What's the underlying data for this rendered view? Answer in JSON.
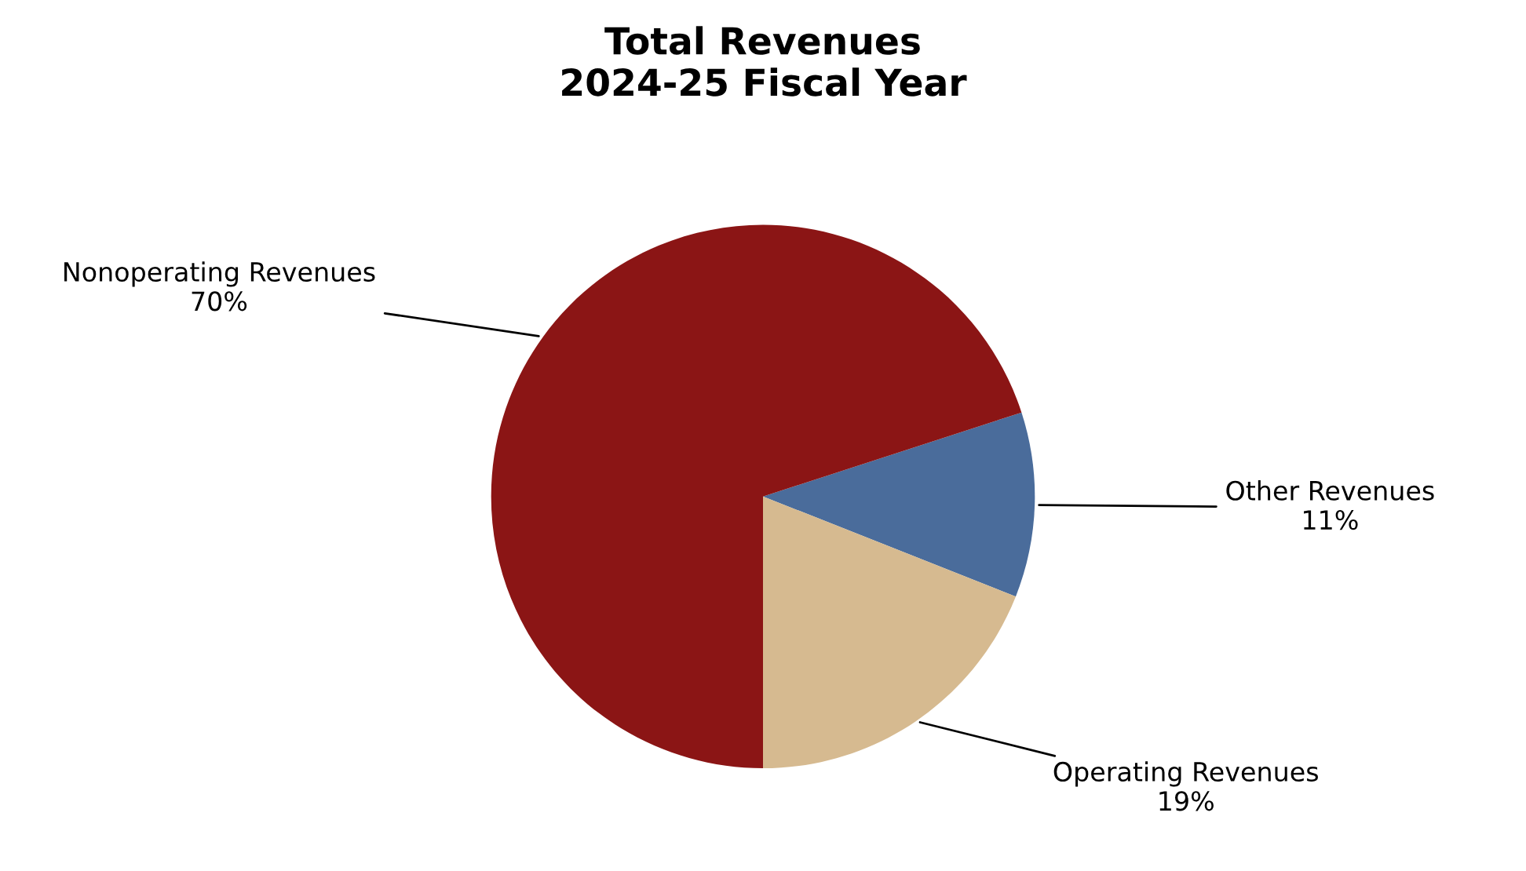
{
  "chart_data": {
    "type": "pie",
    "title": "Total Revenues\n2024-25 Fiscal Year",
    "categories": [
      "Other Revenues",
      "Operating Revenues",
      "Nonoperating Revenues"
    ],
    "values": [
      11,
      19,
      70
    ],
    "value_labels": [
      "11%",
      "19%",
      "70%"
    ],
    "colors": [
      "#4a6c9b",
      "#d6ba90",
      "#8b1515"
    ],
    "legend": false
  }
}
